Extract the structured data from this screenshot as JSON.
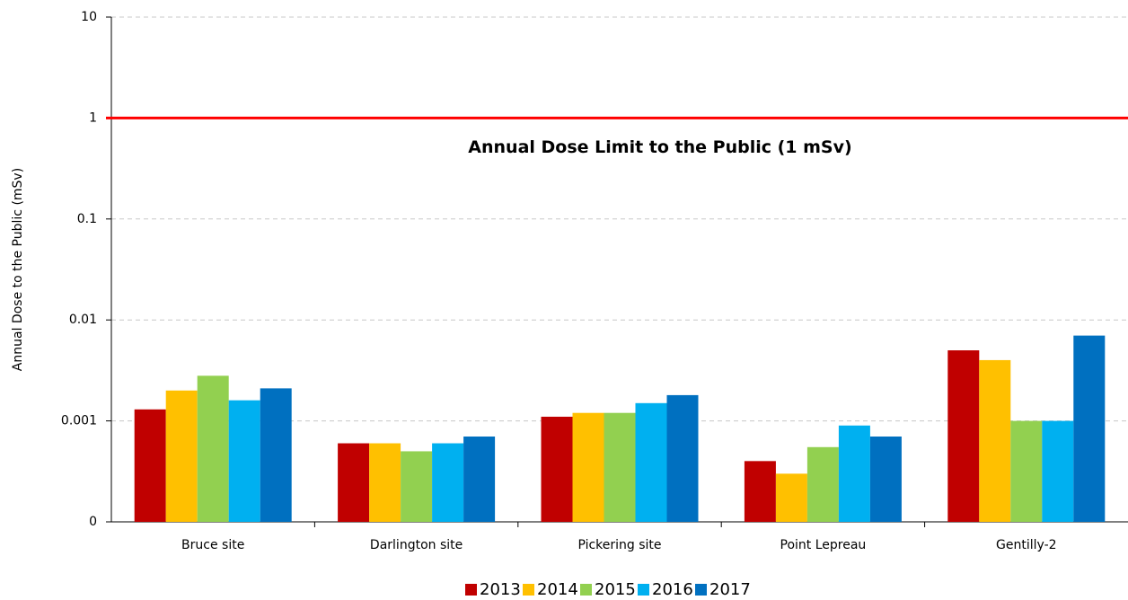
{
  "chart_data": {
    "type": "bar",
    "y_label": "Annual Dose to the Public (mSv)",
    "categories": [
      "Bruce site",
      "Darlington site",
      "Pickering site",
      "Point Lepreau",
      "Gentilly-2"
    ],
    "series": [
      {
        "name": "2013",
        "color": "#c00000",
        "values": [
          0.0013,
          0.0006,
          0.0011,
          0.0004,
          0.005
        ]
      },
      {
        "name": "2014",
        "color": "#ffc000",
        "values": [
          0.002,
          0.0006,
          0.0012,
          0.0003,
          0.004
        ]
      },
      {
        "name": "2015",
        "color": "#92d050",
        "values": [
          0.0028,
          0.0005,
          0.0012,
          0.00055,
          0.001
        ]
      },
      {
        "name": "2016",
        "color": "#00b0f0",
        "values": [
          0.0016,
          0.0006,
          0.0015,
          0.0009,
          0.001
        ]
      },
      {
        "name": "2017",
        "color": "#0070c0",
        "values": [
          0.0021,
          0.0007,
          0.0018,
          0.0007,
          0.007
        ]
      }
    ],
    "yscale": "log",
    "ylim": [
      0.0001,
      10
    ],
    "yticks": [
      {
        "value": 0.0001,
        "label": "0"
      },
      0.001,
      0.01,
      0.1,
      1,
      10
    ],
    "grid": true,
    "reference_line": {
      "value": 1,
      "color": "#ff0000",
      "label": "Annual Dose Limit to the Public (1 mSv)"
    },
    "legend": "bottom"
  }
}
